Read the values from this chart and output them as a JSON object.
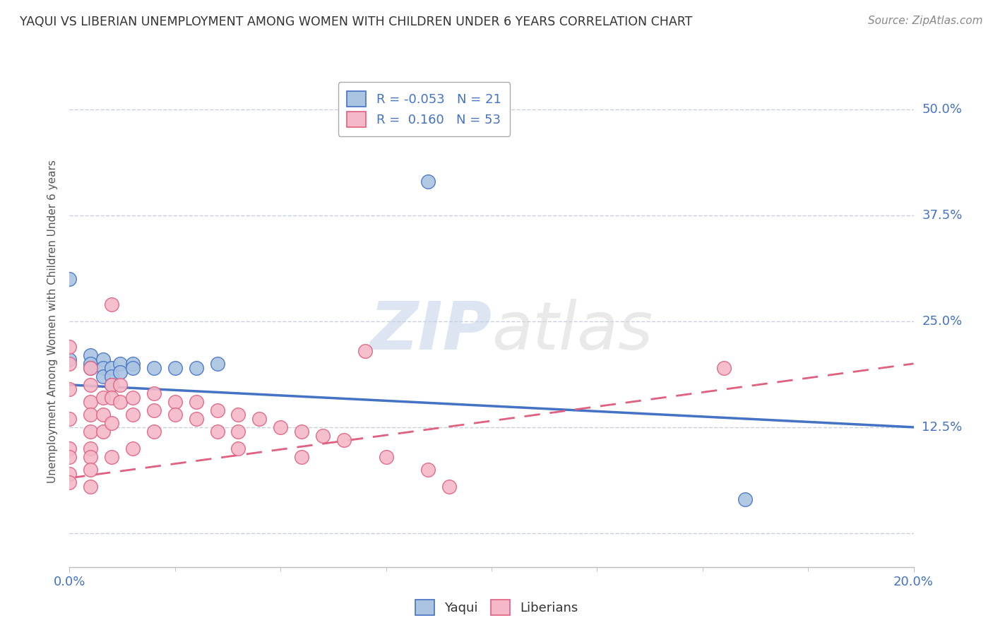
{
  "title": "YAQUI VS LIBERIAN UNEMPLOYMENT AMONG WOMEN WITH CHILDREN UNDER 6 YEARS CORRELATION CHART",
  "source": "Source: ZipAtlas.com",
  "ylabel": "Unemployment Among Women with Children Under 6 years",
  "xlim": [
    0.0,
    0.2
  ],
  "ylim": [
    -0.04,
    0.54
  ],
  "yticks": [
    0.0,
    0.125,
    0.25,
    0.375,
    0.5
  ],
  "ytick_labels": [
    "",
    "12.5%",
    "25.0%",
    "37.5%",
    "50.0%"
  ],
  "xticks": [
    0.0,
    0.2
  ],
  "xtick_labels": [
    "0.0%",
    "20.0%"
  ],
  "legend_r_yaqui": "-0.053",
  "legend_n_yaqui": "21",
  "legend_r_liberian": "0.160",
  "legend_n_liberian": "53",
  "yaqui_color": "#aac4e2",
  "liberian_color": "#f4b8c8",
  "trend_yaqui_color": "#4472c4",
  "trend_liberian_color": "#e06080",
  "watermark_color": "#d0d8e8",
  "watermark_text": "ZIPatlas",
  "background_color": "#ffffff",
  "grid_color": "#c8d0dc",
  "yaqui_points": [
    [
      0.0,
      0.3
    ],
    [
      0.0,
      0.205
    ],
    [
      0.005,
      0.21
    ],
    [
      0.005,
      0.2
    ],
    [
      0.005,
      0.195
    ],
    [
      0.008,
      0.205
    ],
    [
      0.008,
      0.195
    ],
    [
      0.008,
      0.185
    ],
    [
      0.01,
      0.195
    ],
    [
      0.01,
      0.185
    ],
    [
      0.01,
      0.175
    ],
    [
      0.012,
      0.2
    ],
    [
      0.012,
      0.19
    ],
    [
      0.015,
      0.2
    ],
    [
      0.015,
      0.195
    ],
    [
      0.02,
      0.195
    ],
    [
      0.025,
      0.195
    ],
    [
      0.03,
      0.195
    ],
    [
      0.035,
      0.2
    ],
    [
      0.085,
      0.415
    ],
    [
      0.16,
      0.04
    ]
  ],
  "liberian_points": [
    [
      0.0,
      0.22
    ],
    [
      0.0,
      0.2
    ],
    [
      0.0,
      0.17
    ],
    [
      0.0,
      0.135
    ],
    [
      0.0,
      0.1
    ],
    [
      0.0,
      0.09
    ],
    [
      0.0,
      0.07
    ],
    [
      0.0,
      0.06
    ],
    [
      0.005,
      0.195
    ],
    [
      0.005,
      0.175
    ],
    [
      0.005,
      0.155
    ],
    [
      0.005,
      0.14
    ],
    [
      0.005,
      0.12
    ],
    [
      0.005,
      0.1
    ],
    [
      0.005,
      0.09
    ],
    [
      0.005,
      0.075
    ],
    [
      0.005,
      0.055
    ],
    [
      0.008,
      0.16
    ],
    [
      0.008,
      0.14
    ],
    [
      0.008,
      0.12
    ],
    [
      0.01,
      0.27
    ],
    [
      0.01,
      0.175
    ],
    [
      0.01,
      0.16
    ],
    [
      0.01,
      0.13
    ],
    [
      0.01,
      0.09
    ],
    [
      0.012,
      0.175
    ],
    [
      0.012,
      0.155
    ],
    [
      0.015,
      0.16
    ],
    [
      0.015,
      0.14
    ],
    [
      0.015,
      0.1
    ],
    [
      0.02,
      0.165
    ],
    [
      0.02,
      0.145
    ],
    [
      0.02,
      0.12
    ],
    [
      0.025,
      0.155
    ],
    [
      0.025,
      0.14
    ],
    [
      0.03,
      0.155
    ],
    [
      0.03,
      0.135
    ],
    [
      0.035,
      0.145
    ],
    [
      0.035,
      0.12
    ],
    [
      0.04,
      0.14
    ],
    [
      0.04,
      0.12
    ],
    [
      0.04,
      0.1
    ],
    [
      0.045,
      0.135
    ],
    [
      0.05,
      0.125
    ],
    [
      0.055,
      0.12
    ],
    [
      0.055,
      0.09
    ],
    [
      0.06,
      0.115
    ],
    [
      0.065,
      0.11
    ],
    [
      0.07,
      0.215
    ],
    [
      0.075,
      0.09
    ],
    [
      0.085,
      0.075
    ],
    [
      0.09,
      0.055
    ],
    [
      0.155,
      0.195
    ]
  ]
}
